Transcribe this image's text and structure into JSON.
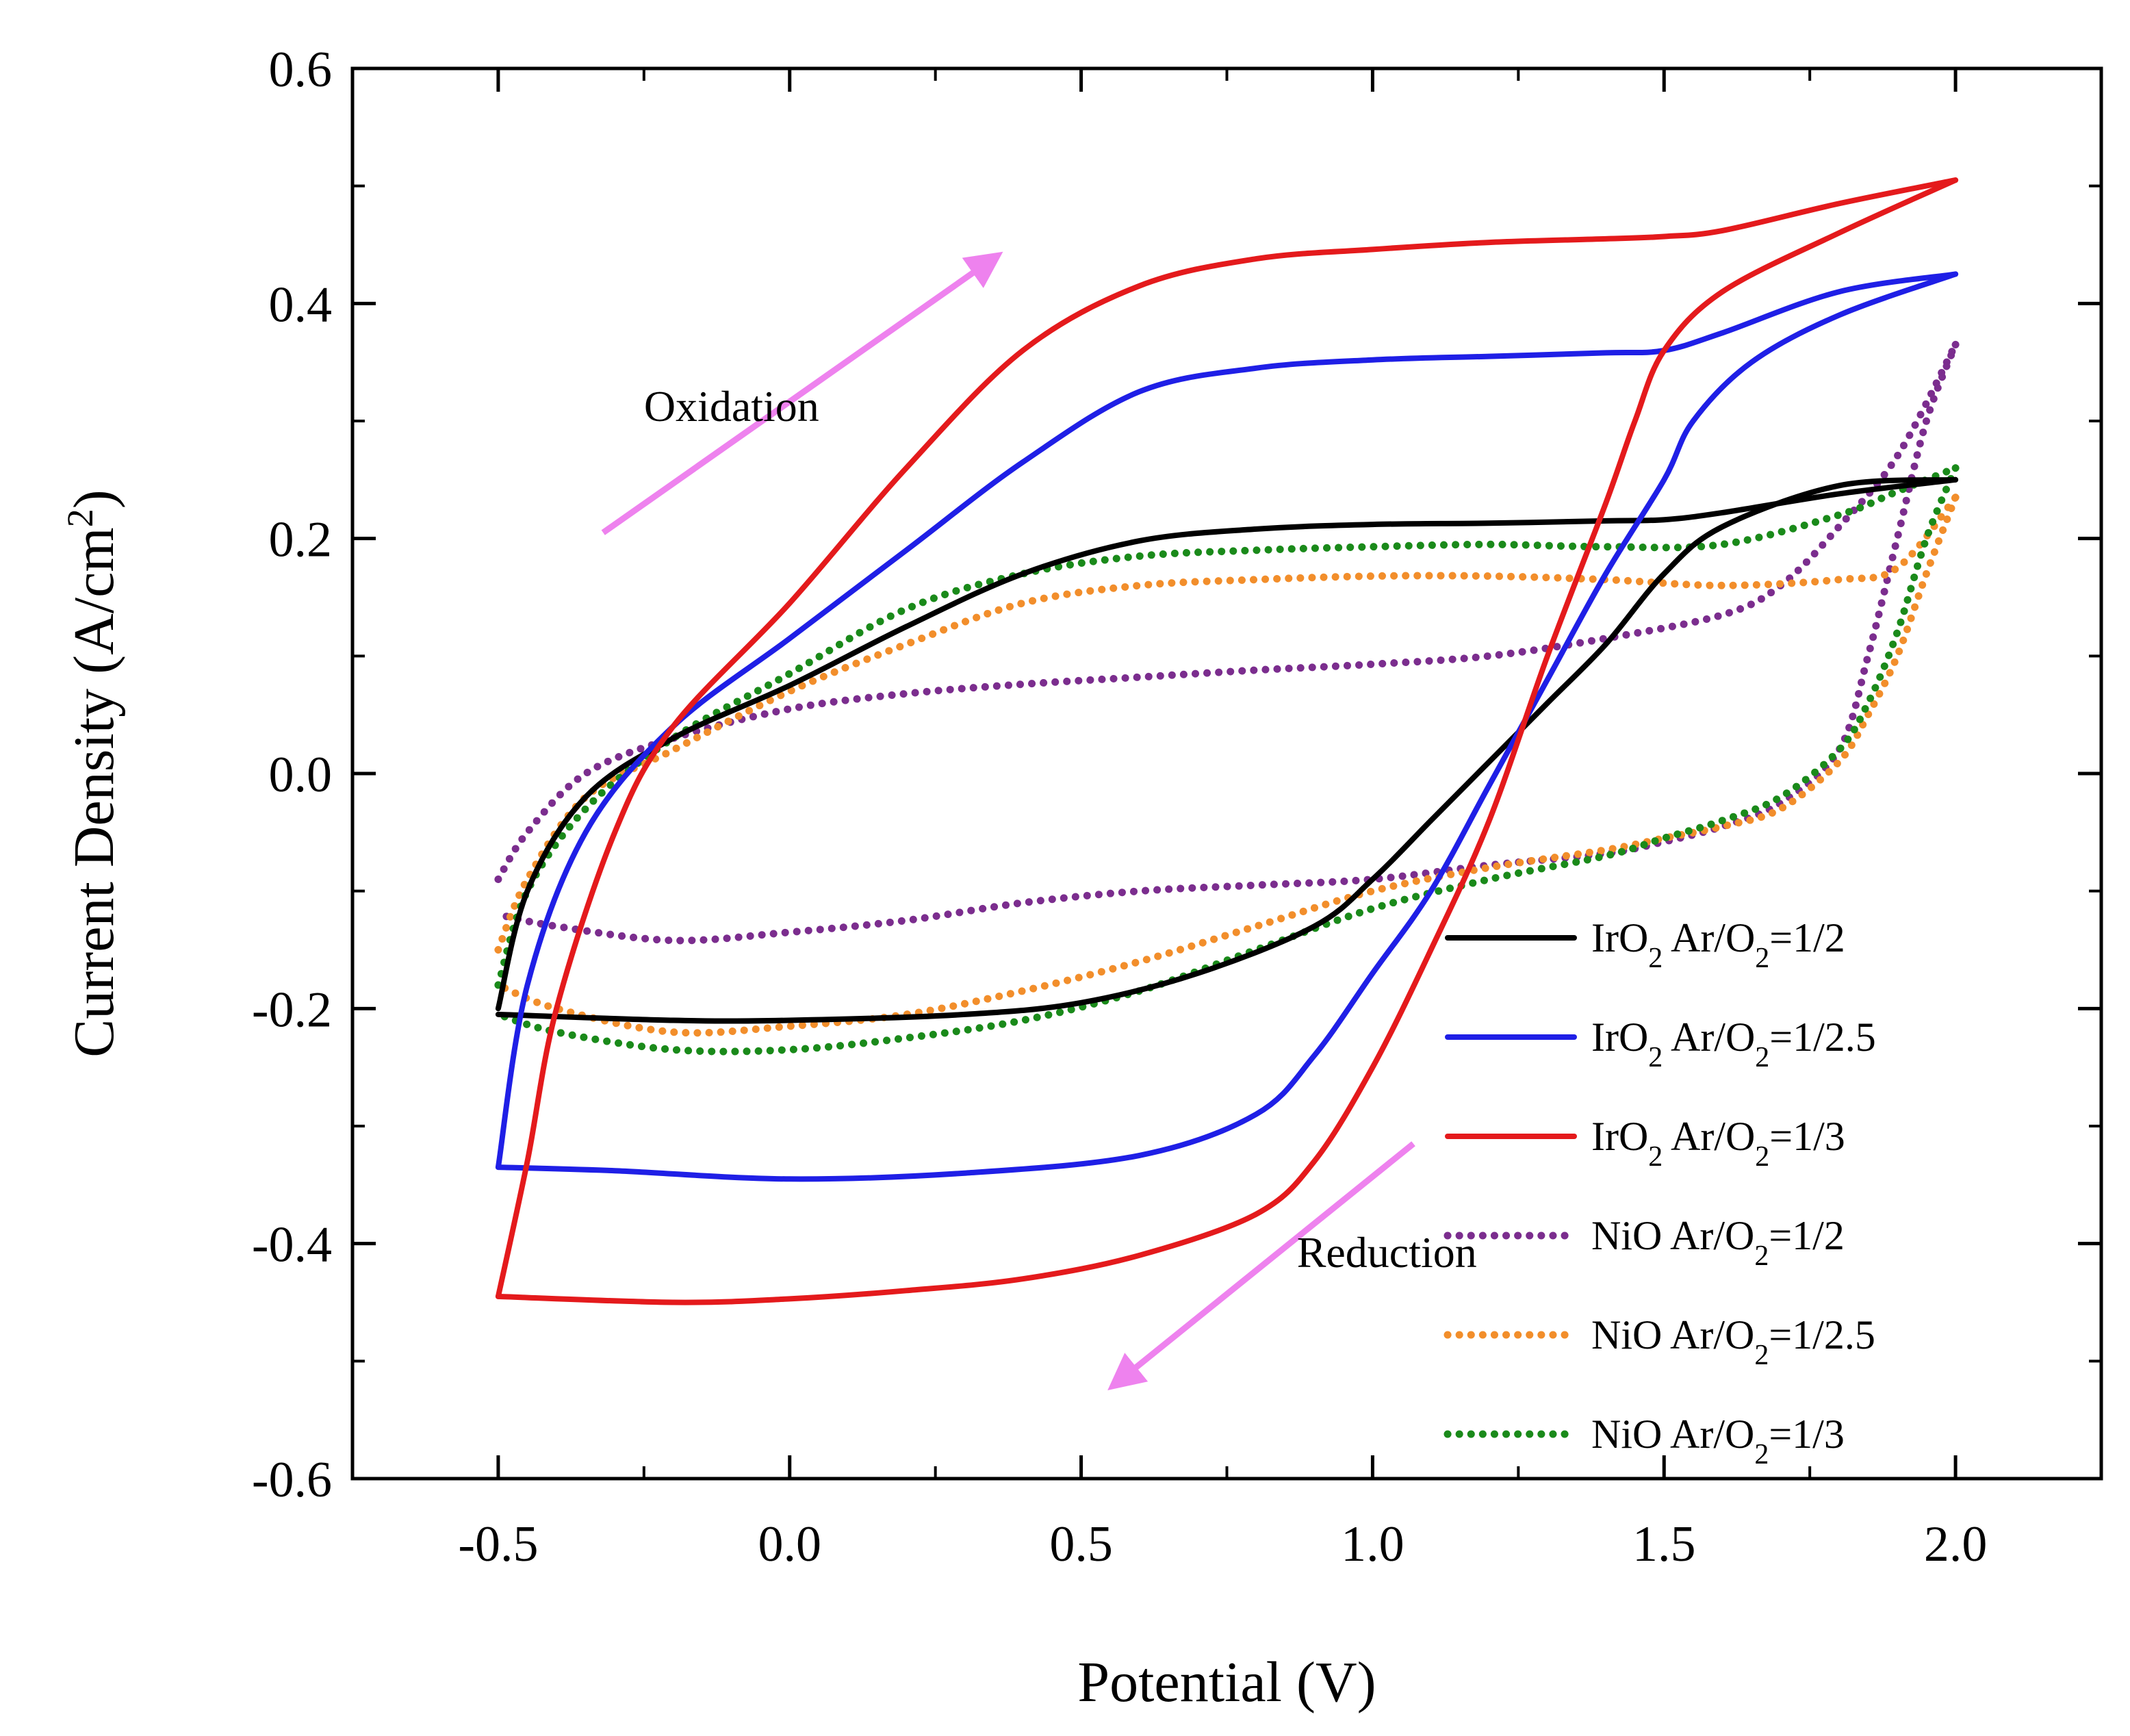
{
  "chart_data": {
    "type": "line",
    "title": "",
    "xlabel": "Potential (V)",
    "ylabel": "Current Density (A/cm",
    "ylabel_sup": "2",
    "ylabel_close": ")",
    "xlim": [
      -0.75,
      2.25
    ],
    "ylim": [
      -0.6,
      0.6
    ],
    "x_ticks": [
      -0.5,
      0.0,
      0.5,
      1.0,
      1.5,
      2.0
    ],
    "x_tick_labels": [
      "-0.5",
      "0.0",
      "0.5",
      "1.0",
      "1.5",
      "2.0"
    ],
    "y_ticks": [
      -0.6,
      -0.4,
      -0.2,
      0.0,
      0.2,
      0.4,
      0.6
    ],
    "y_tick_labels": [
      "-0.6",
      "-0.4",
      "-0.2",
      "0.0",
      "0.2",
      "0.4",
      "0.6"
    ],
    "grid": false,
    "legend_position": "bottom-right",
    "annotations": [
      {
        "name": "oxidation",
        "text": "Oxidation",
        "x": -0.25,
        "y": 0.3,
        "arrow_from": [
          -0.32,
          0.205
        ],
        "arrow_to": [
          0.34,
          0.435
        ],
        "color": "#ee82ee"
      },
      {
        "name": "reduction",
        "text": "Reduction",
        "x": 0.87,
        "y": -0.42,
        "arrow_from": [
          1.07,
          -0.315
        ],
        "arrow_to": [
          0.57,
          -0.515
        ],
        "color": "#ee82ee"
      }
    ],
    "series": [
      {
        "name": "IrO2 Ar/O2=1/2",
        "label_parts": [
          "IrO",
          "2",
          " Ar/O",
          "2",
          "=1/2"
        ],
        "color": "#000000",
        "style": "solid",
        "forward": [
          [
            -0.5,
            -0.2
          ],
          [
            -0.45,
            -0.1
          ],
          [
            -0.35,
            -0.02
          ],
          [
            -0.2,
            0.03
          ],
          [
            0.0,
            0.075
          ],
          [
            0.2,
            0.125
          ],
          [
            0.4,
            0.17
          ],
          [
            0.6,
            0.198
          ],
          [
            0.8,
            0.208
          ],
          [
            1.0,
            0.212
          ],
          [
            1.2,
            0.213
          ],
          [
            1.4,
            0.215
          ],
          [
            1.5,
            0.216
          ],
          [
            1.6,
            0.222
          ],
          [
            1.8,
            0.238
          ],
          [
            2.0,
            0.25
          ]
        ],
        "reverse": [
          [
            2.0,
            0.25
          ],
          [
            1.8,
            0.245
          ],
          [
            1.6,
            0.21
          ],
          [
            1.5,
            0.17
          ],
          [
            1.4,
            0.11
          ],
          [
            1.3,
            0.06
          ],
          [
            1.2,
            0.01
          ],
          [
            1.1,
            -0.04
          ],
          [
            1.0,
            -0.09
          ],
          [
            0.9,
            -0.13
          ],
          [
            0.7,
            -0.17
          ],
          [
            0.5,
            -0.195
          ],
          [
            0.3,
            -0.205
          ],
          [
            0.0,
            -0.21
          ],
          [
            -0.2,
            -0.21
          ],
          [
            -0.5,
            -0.205
          ]
        ]
      },
      {
        "name": "IrO2 Ar/O2=1/2.5",
        "label_parts": [
          "IrO",
          "2",
          " Ar/O",
          "2",
          "=1/2.5"
        ],
        "color": "#1f1fe6",
        "style": "solid",
        "forward": [
          [
            -0.5,
            -0.335
          ],
          [
            -0.45,
            -0.18
          ],
          [
            -0.35,
            -0.05
          ],
          [
            -0.2,
            0.04
          ],
          [
            0.0,
            0.115
          ],
          [
            0.2,
            0.19
          ],
          [
            0.4,
            0.265
          ],
          [
            0.6,
            0.325
          ],
          [
            0.8,
            0.345
          ],
          [
            1.0,
            0.352
          ],
          [
            1.2,
            0.355
          ],
          [
            1.4,
            0.358
          ],
          [
            1.5,
            0.36
          ],
          [
            1.6,
            0.375
          ],
          [
            1.8,
            0.41
          ],
          [
            2.0,
            0.425
          ]
        ],
        "reverse": [
          [
            2.0,
            0.425
          ],
          [
            1.8,
            0.39
          ],
          [
            1.65,
            0.35
          ],
          [
            1.55,
            0.3
          ],
          [
            1.5,
            0.25
          ],
          [
            1.4,
            0.17
          ],
          [
            1.3,
            0.08
          ],
          [
            1.2,
            -0.01
          ],
          [
            1.1,
            -0.1
          ],
          [
            1.0,
            -0.17
          ],
          [
            0.9,
            -0.24
          ],
          [
            0.8,
            -0.29
          ],
          [
            0.6,
            -0.325
          ],
          [
            0.3,
            -0.34
          ],
          [
            0.0,
            -0.345
          ],
          [
            -0.3,
            -0.338
          ],
          [
            -0.5,
            -0.335
          ]
        ]
      },
      {
        "name": "IrO2 Ar/O2=1/3",
        "label_parts": [
          "IrO",
          "2",
          " Ar/O",
          "2",
          "=1/3"
        ],
        "color": "#e41a1c",
        "style": "solid",
        "forward": [
          [
            -0.5,
            -0.445
          ],
          [
            -0.45,
            -0.33
          ],
          [
            -0.4,
            -0.2
          ],
          [
            -0.3,
            -0.05
          ],
          [
            -0.2,
            0.04
          ],
          [
            0.0,
            0.145
          ],
          [
            0.2,
            0.26
          ],
          [
            0.4,
            0.36
          ],
          [
            0.6,
            0.415
          ],
          [
            0.8,
            0.438
          ],
          [
            1.0,
            0.446
          ],
          [
            1.2,
            0.452
          ],
          [
            1.4,
            0.455
          ],
          [
            1.5,
            0.457
          ],
          [
            1.6,
            0.462
          ],
          [
            1.8,
            0.485
          ],
          [
            2.0,
            0.505
          ]
        ],
        "reverse": [
          [
            2.0,
            0.505
          ],
          [
            1.8,
            0.46
          ],
          [
            1.6,
            0.41
          ],
          [
            1.5,
            0.36
          ],
          [
            1.45,
            0.3
          ],
          [
            1.4,
            0.23
          ],
          [
            1.3,
            0.1
          ],
          [
            1.2,
            -0.04
          ],
          [
            1.1,
            -0.15
          ],
          [
            1.0,
            -0.25
          ],
          [
            0.9,
            -0.33
          ],
          [
            0.8,
            -0.375
          ],
          [
            0.6,
            -0.41
          ],
          [
            0.4,
            -0.43
          ],
          [
            0.2,
            -0.44
          ],
          [
            0.0,
            -0.447
          ],
          [
            -0.2,
            -0.45
          ],
          [
            -0.5,
            -0.445
          ]
        ]
      },
      {
        "name": "NiO Ar/O2=1/2",
        "label_parts": [
          "NiO  Ar/O",
          "2",
          "=1/2"
        ],
        "color": "#7b2d8e",
        "style": "dotted",
        "forward": [
          [
            -0.5,
            -0.09
          ],
          [
            -0.45,
            -0.05
          ],
          [
            -0.35,
            0.0
          ],
          [
            -0.2,
            0.03
          ],
          [
            0.0,
            0.055
          ],
          [
            0.2,
            0.068
          ],
          [
            0.4,
            0.076
          ],
          [
            0.6,
            0.082
          ],
          [
            0.8,
            0.088
          ],
          [
            1.0,
            0.093
          ],
          [
            1.2,
            0.1
          ],
          [
            1.4,
            0.115
          ],
          [
            1.6,
            0.135
          ],
          [
            1.7,
            0.16
          ],
          [
            1.8,
            0.21
          ],
          [
            1.9,
            0.27
          ],
          [
            2.0,
            0.365
          ]
        ],
        "reverse": [
          [
            2.0,
            0.365
          ],
          [
            1.95,
            0.3
          ],
          [
            1.9,
            0.2
          ],
          [
            1.85,
            0.1
          ],
          [
            1.8,
            0.02
          ],
          [
            1.7,
            -0.025
          ],
          [
            1.6,
            -0.045
          ],
          [
            1.5,
            -0.058
          ],
          [
            1.4,
            -0.068
          ],
          [
            1.2,
            -0.078
          ],
          [
            1.0,
            -0.09
          ],
          [
            0.8,
            -0.095
          ],
          [
            0.6,
            -0.1
          ],
          [
            0.4,
            -0.11
          ],
          [
            0.2,
            -0.125
          ],
          [
            0.0,
            -0.135
          ],
          [
            -0.2,
            -0.142
          ],
          [
            -0.4,
            -0.13
          ],
          [
            -0.5,
            -0.12
          ]
        ]
      },
      {
        "name": "NiO Ar/O2=1/2.5",
        "label_parts": [
          "NiO  Ar/O",
          "2",
          "=1/2.5"
        ],
        "color": "#f28e2b",
        "style": "dotted",
        "forward": [
          [
            -0.5,
            -0.15
          ],
          [
            -0.45,
            -0.09
          ],
          [
            -0.35,
            -0.02
          ],
          [
            -0.2,
            0.02
          ],
          [
            0.0,
            0.07
          ],
          [
            0.2,
            0.11
          ],
          [
            0.4,
            0.145
          ],
          [
            0.6,
            0.16
          ],
          [
            0.8,
            0.165
          ],
          [
            1.0,
            0.168
          ],
          [
            1.2,
            0.168
          ],
          [
            1.4,
            0.165
          ],
          [
            1.6,
            0.16
          ],
          [
            1.8,
            0.165
          ],
          [
            1.9,
            0.175
          ],
          [
            2.0,
            0.235
          ]
        ],
        "reverse": [
          [
            2.0,
            0.235
          ],
          [
            1.95,
            0.17
          ],
          [
            1.9,
            0.1
          ],
          [
            1.85,
            0.05
          ],
          [
            1.8,
            0.01
          ],
          [
            1.7,
            -0.03
          ],
          [
            1.6,
            -0.045
          ],
          [
            1.5,
            -0.055
          ],
          [
            1.4,
            -0.065
          ],
          [
            1.2,
            -0.08
          ],
          [
            1.0,
            -0.1
          ],
          [
            0.8,
            -0.13
          ],
          [
            0.6,
            -0.16
          ],
          [
            0.4,
            -0.185
          ],
          [
            0.2,
            -0.205
          ],
          [
            0.0,
            -0.215
          ],
          [
            -0.2,
            -0.22
          ],
          [
            -0.4,
            -0.2
          ],
          [
            -0.5,
            -0.18
          ]
        ]
      },
      {
        "name": "NiO Ar/O2=1/3",
        "label_parts": [
          "NiO  Ar/O",
          "2",
          "=1/3"
        ],
        "color": "#1a8a1a",
        "style": "dotted",
        "forward": [
          [
            -0.5,
            -0.18
          ],
          [
            -0.45,
            -0.1
          ],
          [
            -0.35,
            -0.03
          ],
          [
            -0.2,
            0.03
          ],
          [
            0.0,
            0.085
          ],
          [
            0.2,
            0.14
          ],
          [
            0.4,
            0.17
          ],
          [
            0.6,
            0.185
          ],
          [
            0.8,
            0.19
          ],
          [
            1.0,
            0.193
          ],
          [
            1.2,
            0.195
          ],
          [
            1.4,
            0.193
          ],
          [
            1.6,
            0.195
          ],
          [
            1.8,
            0.22
          ],
          [
            1.9,
            0.24
          ],
          [
            2.0,
            0.26
          ]
        ],
        "reverse": [
          [
            2.0,
            0.26
          ],
          [
            1.95,
            0.2
          ],
          [
            1.9,
            0.12
          ],
          [
            1.85,
            0.06
          ],
          [
            1.8,
            0.02
          ],
          [
            1.7,
            -0.02
          ],
          [
            1.6,
            -0.04
          ],
          [
            1.5,
            -0.055
          ],
          [
            1.4,
            -0.07
          ],
          [
            1.2,
            -0.09
          ],
          [
            1.0,
            -0.115
          ],
          [
            0.8,
            -0.15
          ],
          [
            0.6,
            -0.185
          ],
          [
            0.4,
            -0.21
          ],
          [
            0.2,
            -0.225
          ],
          [
            0.0,
            -0.235
          ],
          [
            -0.2,
            -0.235
          ],
          [
            -0.4,
            -0.22
          ],
          [
            -0.5,
            -0.205
          ]
        ]
      }
    ]
  }
}
